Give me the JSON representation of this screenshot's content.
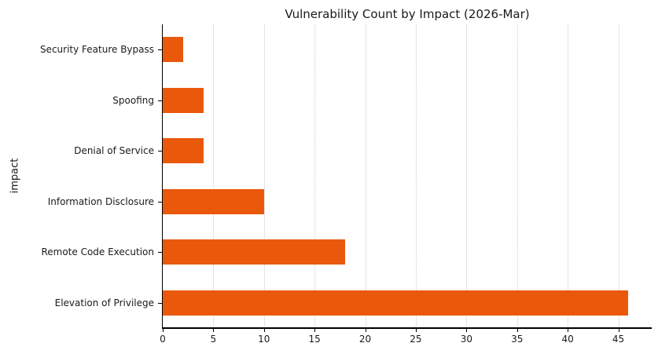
{
  "chart_data": {
    "type": "bar",
    "orientation": "horizontal",
    "title": "Vulnerability Count by Impact (2026-Mar)",
    "xlabel": "",
    "ylabel": "impact",
    "categories_top_to_bottom": [
      "Security Feature Bypass",
      "Spoofing",
      "Denial of Service",
      "Information Disclosure",
      "Remote Code Execution",
      "Elevation of Privilege"
    ],
    "values": [
      2,
      4,
      4,
      10,
      18,
      46
    ],
    "xlim": [
      0,
      48.3
    ],
    "xticks": [
      0,
      5,
      10,
      15,
      20,
      25,
      30,
      35,
      40,
      45
    ],
    "grid": "vertical-dotted",
    "legend": "none",
    "bar_fraction_of_row": 0.5
  },
  "colors": {
    "background": "#ffffff",
    "bar": "#EA580C",
    "grid": "#cbcbcb",
    "axis": "#000000",
    "text": "#1a1a1a"
  }
}
